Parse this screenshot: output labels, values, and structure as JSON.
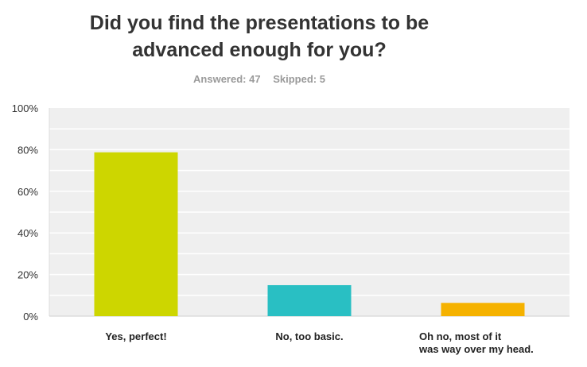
{
  "title_lines": [
    "Did you find the presentations to be",
    "advanced enough for you?"
  ],
  "stats": {
    "answered_label": "Answered: 47",
    "skipped_label": "Skipped: 5"
  },
  "chart_data": {
    "type": "bar",
    "categories": [
      [
        "Yes, perfect!"
      ],
      [
        "No, too basic."
      ],
      [
        "Oh no, most of it",
        "was way over my head."
      ]
    ],
    "values": [
      78.72,
      14.89,
      6.38
    ],
    "ylim": [
      0,
      100
    ],
    "yticks": [
      0,
      20,
      40,
      60,
      80,
      100
    ],
    "ytick_labels": [
      "0%",
      "20%",
      "40%",
      "60%",
      "80%",
      "100%"
    ],
    "colors": [
      "#cdd600",
      "#29bfc3",
      "#f5b200"
    ],
    "plot_background": "#efefef",
    "grid": true,
    "legend": "none"
  }
}
